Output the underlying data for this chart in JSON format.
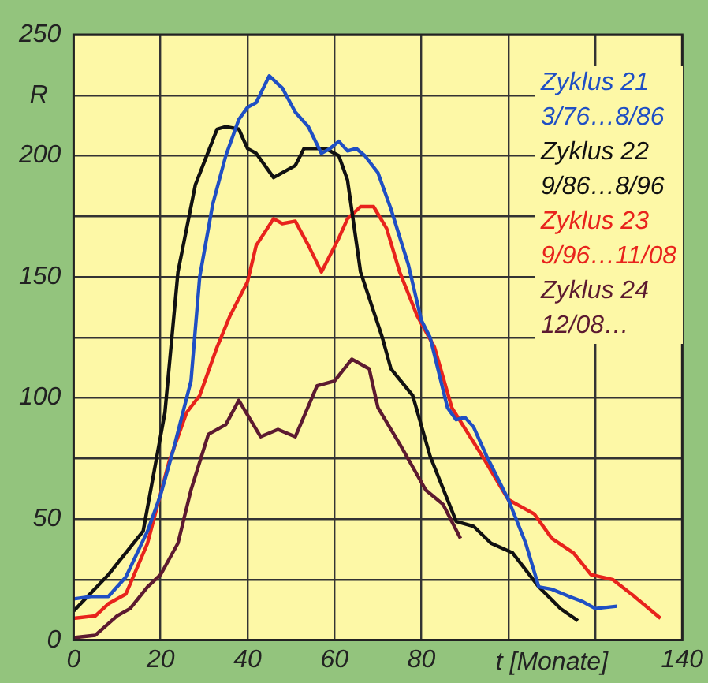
{
  "chart_data": {
    "type": "line",
    "xlabel": "t [Monate]",
    "ylabel": "R",
    "xlim": [
      0,
      140
    ],
    "ylim": [
      0,
      250
    ],
    "xticks": [
      0,
      20,
      40,
      60,
      80,
      {
        "value": 100,
        "label": null
      },
      {
        "value": 120,
        "label": null
      },
      140
    ],
    "yticks": [
      0,
      {
        "value": 25,
        "label": null
      },
      50,
      {
        "value": 75,
        "label": null
      },
      100,
      {
        "value": 125,
        "label": null
      },
      150,
      {
        "value": 175,
        "label": null
      },
      200,
      {
        "value": 225,
        "label": null
      },
      250
    ],
    "grid": true,
    "legend": "top right",
    "marker": "none",
    "line_style": "solid",
    "series": [
      {
        "name": "Zyklus 21 3/76…8/86",
        "color": "#1f4fc4",
        "x": [
          0,
          4,
          8,
          12,
          17,
          20,
          23,
          27,
          29,
          32,
          35,
          38,
          40,
          42,
          45,
          48,
          51,
          54,
          57,
          59,
          61,
          63,
          65,
          67,
          70,
          73,
          77,
          80,
          82,
          86,
          88,
          90,
          92,
          95,
          100,
          104,
          107,
          110,
          114,
          117,
          120,
          125
        ],
        "values": [
          17,
          18,
          18,
          26,
          45,
          60,
          79,
          107,
          150,
          180,
          200,
          215,
          220,
          222,
          233,
          228,
          218,
          212,
          201,
          203,
          206,
          202,
          203,
          200,
          193,
          178,
          155,
          132,
          125,
          96,
          91,
          92,
          88,
          76,
          58,
          40,
          22,
          21,
          18,
          16,
          13,
          14
        ]
      },
      {
        "name": "Zyklus 22 9/86…8/96",
        "color": "#111111",
        "x": [
          0,
          8,
          16,
          21,
          24,
          28,
          33,
          35,
          38,
          40,
          42,
          46,
          51,
          53,
          58,
          61,
          63,
          66,
          71,
          73,
          78,
          82,
          88,
          92,
          96,
          101,
          107,
          112,
          116
        ],
        "values": [
          12,
          27,
          45,
          94,
          152,
          188,
          211,
          212,
          211,
          203,
          201,
          191,
          196,
          203,
          203,
          200,
          190,
          152,
          125,
          112,
          101,
          76,
          49,
          47,
          40,
          36,
          22,
          13,
          8
        ]
      },
      {
        "name": "Zyklus 23 9/96…11/08",
        "color": "#e8231c",
        "x": [
          0,
          5,
          8,
          12,
          17,
          22,
          26,
          29,
          33,
          36,
          40,
          42,
          46,
          48,
          51,
          54,
          57,
          61,
          63,
          66,
          69,
          72,
          75,
          79,
          83,
          87,
          94,
          100,
          106,
          110,
          115,
          119,
          124,
          129,
          135
        ],
        "values": [
          9,
          10,
          15,
          19,
          40,
          74,
          94,
          101,
          121,
          134,
          148,
          163,
          174,
          172,
          173,
          163,
          152,
          166,
          174,
          179,
          179,
          170,
          152,
          134,
          121,
          96,
          76,
          58,
          52,
          42,
          36,
          27,
          25,
          18,
          9
        ]
      },
      {
        "name": "Zyklus 24 12/08…",
        "color": "#5c1a30",
        "x": [
          0,
          5,
          10,
          13,
          17,
          20,
          24,
          27,
          31,
          35,
          38,
          43,
          47,
          51,
          56,
          60,
          64,
          68,
          70,
          75,
          81,
          85,
          89
        ],
        "values": [
          1,
          2,
          10,
          13,
          22,
          27,
          40,
          62,
          85,
          89,
          99,
          84,
          87,
          84,
          105,
          107,
          116,
          112,
          96,
          81,
          62,
          56,
          42
        ]
      }
    ]
  }
}
